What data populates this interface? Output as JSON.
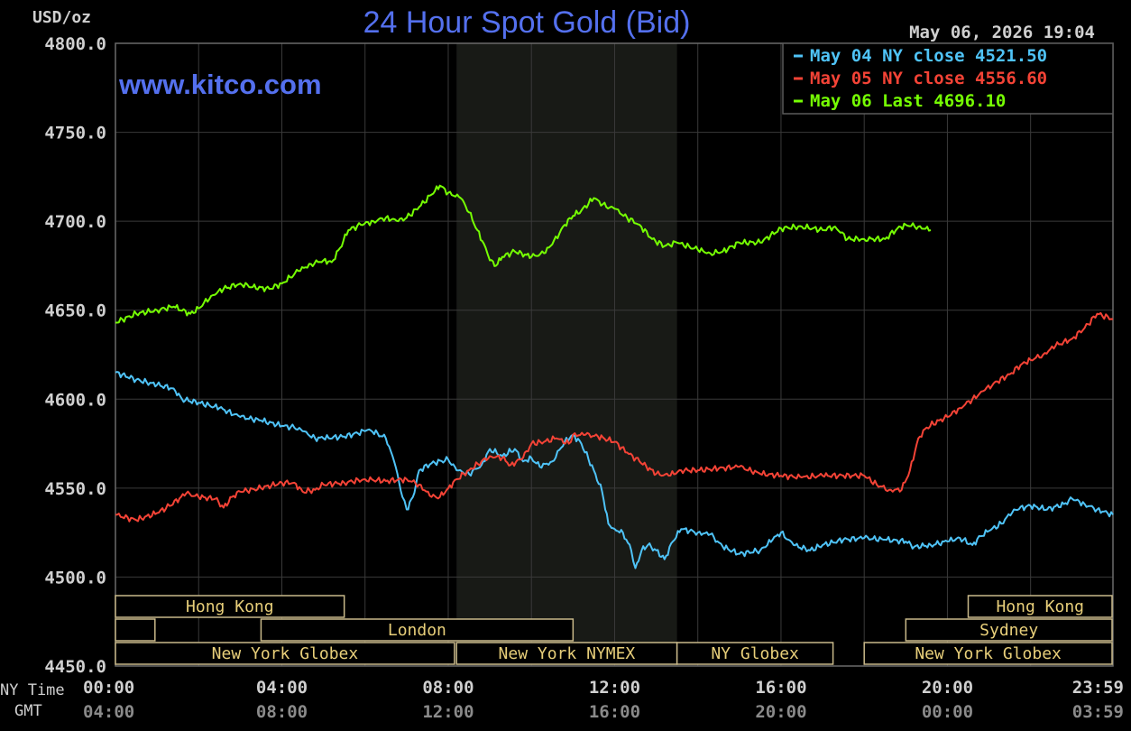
{
  "chart_data": {
    "type": "line",
    "title": "24 Hour Spot Gold (Bid)",
    "unit_label": "USD/oz",
    "watermark": "www.kitco.com",
    "timestamp": "May 06, 2026 19:04",
    "ylim": [
      4450,
      4800
    ],
    "y_ticks": [
      "4800.0",
      "4750.0",
      "4700.0",
      "4650.0",
      "4600.0",
      "4550.0",
      "4500.0",
      "4450.0"
    ],
    "x_row_labels": [
      "NY Time",
      "GMT"
    ],
    "x_ticks_ny": [
      "00:00",
      "04:00",
      "08:00",
      "12:00",
      "16:00",
      "20:00",
      "23:59"
    ],
    "x_ticks_gmt": [
      "04:00",
      "08:00",
      "12:00",
      "16:00",
      "20:00",
      "00:00",
      "03:59"
    ],
    "grid": true,
    "legend_position": "top-right",
    "x_unit": "hours (NY time)",
    "highlight_band_hours": [
      8.2,
      13.5
    ],
    "sessions": [
      {
        "label": "Hong Kong",
        "start": 0,
        "end": 5.5,
        "row": 0
      },
      {
        "label": "",
        "start": 0,
        "end": 0.95,
        "row": 1
      },
      {
        "label": "London",
        "start": 3.5,
        "end": 11,
        "row": 1
      },
      {
        "label": "New York Globex",
        "start": 0,
        "end": 8.15,
        "row": 2
      },
      {
        "label": "New York NYMEX",
        "start": 8.2,
        "end": 13.5,
        "row": 2
      },
      {
        "label": "NY Globex",
        "start": 13.5,
        "end": 17.25,
        "row": 2
      },
      {
        "label": "Hong Kong",
        "start": 20.5,
        "end": 23.98,
        "row": 0
      },
      {
        "label": "Sydney",
        "start": 19,
        "end": 23.98,
        "row": 1
      },
      {
        "label": "New York Globex",
        "start": 18,
        "end": 23.98,
        "row": 2
      }
    ],
    "series": [
      {
        "name": "May 04 NY close 4521.50",
        "color": "#4fc3f7",
        "points": [
          [
            0,
            4615
          ],
          [
            0.5,
            4611
          ],
          [
            1,
            4608
          ],
          [
            1.4,
            4606
          ],
          [
            1.6,
            4600
          ],
          [
            2,
            4598
          ],
          [
            2.5,
            4595
          ],
          [
            3,
            4590
          ],
          [
            3.5,
            4588
          ],
          [
            4,
            4585
          ],
          [
            4.3,
            4584
          ],
          [
            4.5,
            4582
          ],
          [
            4.8,
            4578
          ],
          [
            5,
            4578
          ],
          [
            5.5,
            4579
          ],
          [
            6,
            4582
          ],
          [
            6.1,
            4583
          ],
          [
            6.5,
            4578
          ],
          [
            6.7,
            4565
          ],
          [
            6.9,
            4545
          ],
          [
            7,
            4538
          ],
          [
            7.15,
            4545
          ],
          [
            7.3,
            4560
          ],
          [
            7.6,
            4564
          ],
          [
            8,
            4566
          ],
          [
            8.2,
            4560
          ],
          [
            8.5,
            4558
          ],
          [
            8.8,
            4563
          ],
          [
            9,
            4572
          ],
          [
            9.3,
            4568
          ],
          [
            9.6,
            4572
          ],
          [
            9.8,
            4565
          ],
          [
            10,
            4567
          ],
          [
            10.2,
            4562
          ],
          [
            10.5,
            4565
          ],
          [
            10.8,
            4576
          ],
          [
            11,
            4580
          ],
          [
            11.2,
            4575
          ],
          [
            11.5,
            4560
          ],
          [
            11.7,
            4548
          ],
          [
            11.85,
            4530
          ],
          [
            12,
            4527
          ],
          [
            12.2,
            4525
          ],
          [
            12.4,
            4515
          ],
          [
            12.5,
            4505
          ],
          [
            12.65,
            4515
          ],
          [
            12.8,
            4518
          ],
          [
            13,
            4515
          ],
          [
            13.2,
            4510
          ],
          [
            13.4,
            4520
          ],
          [
            13.6,
            4527
          ],
          [
            14,
            4525
          ],
          [
            14.3,
            4524
          ],
          [
            14.6,
            4517
          ],
          [
            15,
            4513
          ],
          [
            15.5,
            4515
          ],
          [
            15.8,
            4521
          ],
          [
            16,
            4525
          ],
          [
            16.3,
            4518
          ],
          [
            16.7,
            4515
          ],
          [
            17,
            4518
          ],
          [
            17.5,
            4521
          ],
          [
            18,
            4522
          ],
          [
            18.5,
            4521
          ],
          [
            19,
            4520
          ],
          [
            19.2,
            4517
          ],
          [
            19.6,
            4518
          ],
          [
            20,
            4520
          ],
          [
            20.3,
            4522
          ],
          [
            20.6,
            4518
          ],
          [
            20.8,
            4523
          ],
          [
            21,
            4526
          ],
          [
            21.3,
            4530
          ],
          [
            21.6,
            4538
          ],
          [
            22,
            4540
          ],
          [
            22.4,
            4538
          ],
          [
            22.8,
            4541
          ],
          [
            23,
            4544
          ],
          [
            23.3,
            4541
          ],
          [
            23.6,
            4538
          ],
          [
            23.98,
            4535
          ]
        ]
      },
      {
        "name": "May 05 NY close 4556.60",
        "color": "#f44336",
        "points": [
          [
            0,
            4535
          ],
          [
            0.5,
            4532
          ],
          [
            1,
            4536
          ],
          [
            1.3,
            4540
          ],
          [
            1.7,
            4547
          ],
          [
            2,
            4545
          ],
          [
            2.4,
            4544
          ],
          [
            2.6,
            4539
          ],
          [
            2.8,
            4545
          ],
          [
            3,
            4548
          ],
          [
            3.5,
            4550
          ],
          [
            4,
            4553
          ],
          [
            4.3,
            4553
          ],
          [
            4.5,
            4548
          ],
          [
            4.8,
            4549
          ],
          [
            5,
            4552
          ],
          [
            5.5,
            4553
          ],
          [
            6,
            4555
          ],
          [
            6.5,
            4554
          ],
          [
            7,
            4555
          ],
          [
            7.3,
            4552
          ],
          [
            7.6,
            4545
          ],
          [
            7.8,
            4545
          ],
          [
            8,
            4550
          ],
          [
            8.2,
            4555
          ],
          [
            8.5,
            4560
          ],
          [
            8.8,
            4565
          ],
          [
            9,
            4568
          ],
          [
            9.3,
            4567
          ],
          [
            9.5,
            4563
          ],
          [
            9.8,
            4567
          ],
          [
            10,
            4575
          ],
          [
            10.3,
            4576
          ],
          [
            10.6,
            4578
          ],
          [
            10.9,
            4575
          ],
          [
            11,
            4580
          ],
          [
            11.3,
            4580
          ],
          [
            11.6,
            4579
          ],
          [
            12,
            4576
          ],
          [
            12.3,
            4570
          ],
          [
            12.6,
            4565
          ],
          [
            13,
            4558
          ],
          [
            13.3,
            4557
          ],
          [
            13.6,
            4560
          ],
          [
            14,
            4560
          ],
          [
            14.5,
            4561
          ],
          [
            15,
            4562
          ],
          [
            15.5,
            4558
          ],
          [
            16,
            4557
          ],
          [
            16.5,
            4556
          ],
          [
            17,
            4557
          ],
          [
            17.5,
            4557
          ],
          [
            18,
            4557
          ],
          [
            18.3,
            4552
          ],
          [
            18.6,
            4549
          ],
          [
            18.9,
            4549
          ],
          [
            19.1,
            4560
          ],
          [
            19.3,
            4578
          ],
          [
            19.5,
            4584
          ],
          [
            19.8,
            4588
          ],
          [
            20,
            4590
          ],
          [
            20.3,
            4595
          ],
          [
            20.6,
            4600
          ],
          [
            20.9,
            4605
          ],
          [
            21.2,
            4610
          ],
          [
            21.5,
            4614
          ],
          [
            21.8,
            4620
          ],
          [
            22,
            4622
          ],
          [
            22.3,
            4625
          ],
          [
            22.6,
            4630
          ],
          [
            23,
            4634
          ],
          [
            23.3,
            4640
          ],
          [
            23.6,
            4648
          ],
          [
            23.98,
            4645
          ]
        ]
      },
      {
        "name": "May 06 Last 4696.10",
        "color": "#76ff03",
        "points": [
          [
            0,
            4643
          ],
          [
            0.5,
            4648
          ],
          [
            1,
            4650
          ],
          [
            1.4,
            4652
          ],
          [
            1.8,
            4648
          ],
          [
            2,
            4651
          ],
          [
            2.3,
            4658
          ],
          [
            2.6,
            4662
          ],
          [
            3,
            4665
          ],
          [
            3.3,
            4663
          ],
          [
            3.7,
            4662
          ],
          [
            4,
            4665
          ],
          [
            4.4,
            4672
          ],
          [
            4.7,
            4676
          ],
          [
            5,
            4678
          ],
          [
            5.2,
            4677
          ],
          [
            5.4,
            4685
          ],
          [
            5.6,
            4695
          ],
          [
            5.9,
            4698
          ],
          [
            6.2,
            4700
          ],
          [
            6.5,
            4702
          ],
          [
            6.8,
            4700
          ],
          [
            7,
            4702
          ],
          [
            7.3,
            4708
          ],
          [
            7.6,
            4715
          ],
          [
            7.8,
            4720
          ],
          [
            8,
            4716
          ],
          [
            8.3,
            4713
          ],
          [
            8.5,
            4705
          ],
          [
            8.7,
            4695
          ],
          [
            8.9,
            4685
          ],
          [
            9,
            4678
          ],
          [
            9.15,
            4675
          ],
          [
            9.3,
            4680
          ],
          [
            9.6,
            4683
          ],
          [
            10,
            4680
          ],
          [
            10.3,
            4682
          ],
          [
            10.5,
            4687
          ],
          [
            10.8,
            4698
          ],
          [
            11,
            4703
          ],
          [
            11.2,
            4706
          ],
          [
            11.5,
            4713
          ],
          [
            11.8,
            4708
          ],
          [
            12,
            4707
          ],
          [
            12.3,
            4702
          ],
          [
            12.6,
            4698
          ],
          [
            12.9,
            4690
          ],
          [
            13.2,
            4686
          ],
          [
            13.5,
            4688
          ],
          [
            14,
            4684
          ],
          [
            14.3,
            4682
          ],
          [
            14.6,
            4683
          ],
          [
            15,
            4688
          ],
          [
            15.5,
            4688
          ],
          [
            16,
            4696
          ],
          [
            16.5,
            4697
          ],
          [
            17,
            4695
          ],
          [
            17.3,
            4697
          ],
          [
            17.6,
            4690
          ],
          [
            18,
            4690
          ],
          [
            18.5,
            4690
          ],
          [
            18.8,
            4696
          ],
          [
            19,
            4698
          ],
          [
            19.3,
            4697
          ],
          [
            19.6,
            4695
          ]
        ]
      }
    ]
  }
}
